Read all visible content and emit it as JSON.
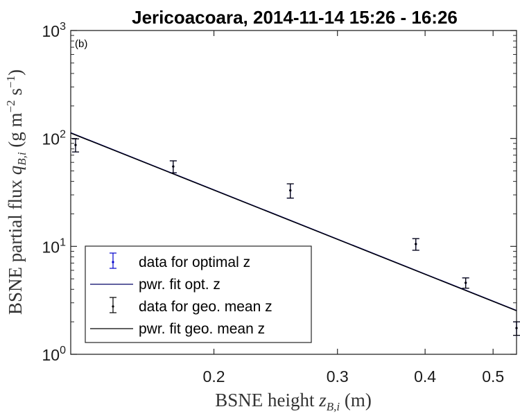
{
  "chart_data": {
    "type": "scatter",
    "title": "Jericoacoara, 2014-11-14 15:26 - 16:26",
    "panel_label": "(b)",
    "xlabel": {
      "main": "BSNE height ",
      "sym": "z",
      "sub": "B,i",
      "unit": " (m)"
    },
    "ylabel": {
      "main": "BSNE partial flux ",
      "sym": "q",
      "sub": "B,i",
      "unit_pre": " (g m",
      "exp1": "−2",
      "unit_mid": " s",
      "exp2": "−1",
      "unit_post": ")"
    },
    "x_scale": "log",
    "y_scale": "log",
    "xlim": [
      0.125,
      0.54
    ],
    "ylim": [
      1,
      1000
    ],
    "x_ticks": [
      {
        "value": 0.2,
        "label": "0.2"
      },
      {
        "value": 0.3,
        "label": "0.3"
      },
      {
        "value": 0.4,
        "label": "0.4"
      },
      {
        "value": 0.5,
        "label": "0.5"
      }
    ],
    "y_ticks": [
      {
        "value": 1,
        "base": "10",
        "exp": "0"
      },
      {
        "value": 10,
        "base": "10",
        "exp": "1"
      },
      {
        "value": 100,
        "base": "10",
        "exp": "2"
      },
      {
        "value": 1000,
        "base": "10",
        "exp": "3"
      }
    ],
    "grid": false,
    "legend_position": "bottom-left",
    "series": [
      {
        "name": "data for optimal z",
        "kind": "points",
        "color": "#0000cc",
        "x": [
          0.127,
          0.175,
          0.257,
          0.388,
          0.457,
          0.54
        ],
        "y": [
          87,
          55,
          33,
          10.5,
          4.6,
          1.75
        ],
        "err": [
          12,
          7,
          5,
          1.3,
          0.5,
          0.25
        ]
      },
      {
        "name": "pwr. fit opt. z",
        "kind": "line",
        "color": "#000066",
        "x": [
          0.125,
          0.54
        ],
        "y": [
          113,
          2.55
        ]
      },
      {
        "name": "data for geo. mean z",
        "kind": "points",
        "color": "#000000",
        "x": [
          0.127,
          0.175,
          0.257,
          0.388,
          0.457,
          0.54
        ],
        "y": [
          87,
          55,
          33,
          10.5,
          4.6,
          1.75
        ],
        "err": [
          12,
          7,
          5,
          1.3,
          0.5,
          0.25
        ]
      },
      {
        "name": "pwr. fit geo. mean z",
        "kind": "line",
        "color": "#000000",
        "x": [
          0.125,
          0.54
        ],
        "y": [
          112,
          2.53
        ]
      }
    ]
  }
}
